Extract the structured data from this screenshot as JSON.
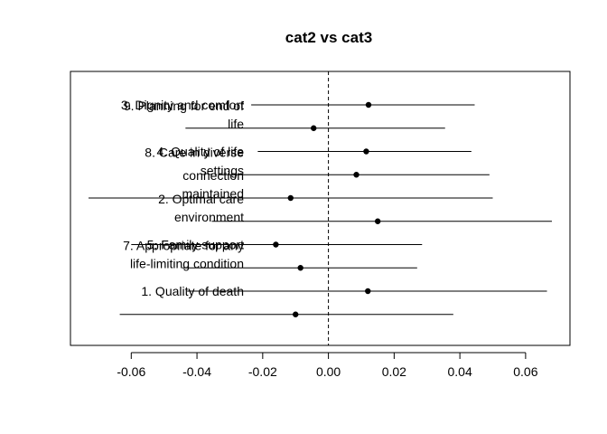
{
  "chart_data": {
    "type": "forest",
    "title": "cat2 vs cat3",
    "xlabel": "",
    "ylabel": "",
    "xlim": [
      -0.0785,
      0.0735
    ],
    "xticks": [
      "-0.06",
      "-0.04",
      "-0.02",
      "0.00",
      "0.02",
      "0.04",
      "0.06"
    ],
    "xtick_values": [
      -0.06,
      -0.04,
      -0.02,
      0.0,
      0.02,
      0.04,
      0.06
    ],
    "reference_line": 0.0,
    "rows": [
      {
        "label": [
          "3. Dignity and comfort"
        ],
        "estimate": 0.0122,
        "lower": -0.0235,
        "upper": 0.0445
      },
      {
        "label": [
          "9. Planning for end of",
          "life"
        ],
        "estimate": -0.0045,
        "lower": -0.0435,
        "upper": 0.0355
      },
      {
        "label": [
          "4. Quality of life"
        ],
        "estimate": 0.0115,
        "lower": -0.0215,
        "upper": 0.0435
      },
      {
        "label": [
          "8. Care in diverse",
          "settings"
        ],
        "estimate": 0.0085,
        "lower": -0.0335,
        "upper": 0.049
      },
      {
        "label": [
          "connection",
          "maintained"
        ],
        "estimate": -0.0115,
        "lower": -0.073,
        "upper": 0.05
      },
      {
        "label": [
          "2. Optimal care",
          "environment"
        ],
        "estimate": 0.015,
        "lower": -0.0355,
        "upper": 0.068
      },
      {
        "label": [
          "5. Family support"
        ],
        "estimate": -0.016,
        "lower": -0.06,
        "upper": 0.0285
      },
      {
        "label": [
          "7. Appropriate for any",
          "life-limiting condition"
        ],
        "estimate": -0.0085,
        "lower": -0.0445,
        "upper": 0.027
      },
      {
        "label": [
          "1. Quality of death"
        ],
        "estimate": 0.012,
        "lower": -0.043,
        "upper": 0.0665
      },
      {
        "label": [],
        "estimate": -0.01,
        "lower": -0.0635,
        "upper": 0.038
      }
    ]
  }
}
